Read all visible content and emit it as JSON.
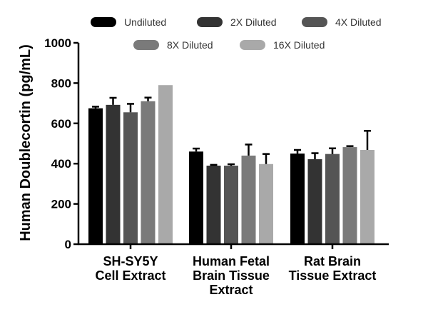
{
  "chart_data": {
    "type": "bar",
    "title": "",
    "xlabel": "",
    "ylabel": "Human Doublecortin (pg/mL)",
    "ylim": [
      0,
      1000
    ],
    "yticks": [
      0,
      200,
      400,
      600,
      800,
      1000
    ],
    "categories": [
      [
        "SH-SY5Y",
        "Cell Extract"
      ],
      [
        "Human Fetal",
        "Brain Tissue",
        "Extract"
      ],
      [
        "Rat Brain",
        "Tissue Extract"
      ]
    ],
    "series": [
      {
        "name": "Undiluted",
        "color": "#000000",
        "values": [
          675,
          460,
          450
        ],
        "errors": [
          8,
          15,
          18
        ]
      },
      {
        "name": "2X Diluted",
        "color": "#333333",
        "values": [
          692,
          390,
          422
        ],
        "errors": [
          35,
          4,
          30
        ]
      },
      {
        "name": "4X Diluted",
        "color": "#555555",
        "values": [
          655,
          390,
          448
        ],
        "errors": [
          42,
          7,
          28
        ]
      },
      {
        "name": "8X Diluted",
        "color": "#7a7a7a",
        "values": [
          710,
          440,
          482
        ],
        "errors": [
          18,
          55,
          5
        ]
      },
      {
        "name": "16X Diluted",
        "color": "#a9a9a9",
        "values": [
          790,
          398,
          468
        ],
        "errors": [
          0,
          50,
          95
        ]
      }
    ],
    "legend_position": "top"
  }
}
